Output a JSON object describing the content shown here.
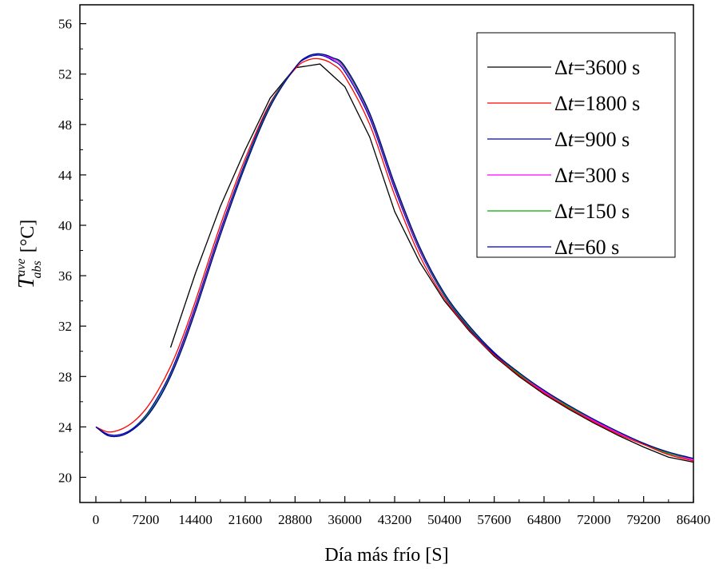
{
  "chart_data": {
    "type": "line",
    "xlabel": "Día más frío  [S]",
    "ylabel": {
      "symbol": "T",
      "superscript": "ave",
      "subscript": "abs",
      "unit": "[°C]"
    },
    "xlim": [
      0,
      86400
    ],
    "ylim": [
      18,
      57.5
    ],
    "xticks": [
      0,
      7200,
      14400,
      21600,
      28800,
      36000,
      43200,
      50400,
      57600,
      64800,
      72000,
      79200,
      86400
    ],
    "xtick_labels": [
      "0",
      "7200",
      "14400",
      "21600",
      "28800",
      "36000",
      "43200",
      "50400",
      "57600",
      "64800",
      "72000",
      "79200",
      "86400"
    ],
    "yticks": [
      20,
      24,
      28,
      32,
      36,
      40,
      44,
      48,
      52,
      56
    ],
    "ytick_labels": [
      "20",
      "24",
      "28",
      "32",
      "36",
      "40",
      "44",
      "48",
      "52",
      "56"
    ],
    "grid": false,
    "legend_position": "top-right",
    "series": [
      {
        "name": "Δt=3600 s",
        "legend": {
          "delta": "Δ",
          "var": "t",
          "rest": "=3600 s"
        },
        "color": "#000000",
        "x": [
          10800,
          14400,
          18000,
          21600,
          25200,
          28800,
          32400,
          36000,
          39600,
          43200,
          46800,
          50400,
          54000,
          57600,
          61200,
          64800,
          68400,
          72000,
          75600,
          79200,
          82800,
          86400
        ],
        "y": [
          30.3,
          36.2,
          41.5,
          46.0,
          50.1,
          52.5,
          52.8,
          51.0,
          47.0,
          41.1,
          37.1,
          34.0,
          31.6,
          29.6,
          28.0,
          26.6,
          25.4,
          24.3,
          23.3,
          22.4,
          21.6,
          21.2
        ]
      },
      {
        "name": "Δt=1800 s",
        "legend": {
          "delta": "Δ",
          "var": "t",
          "rest": "=1800 s"
        },
        "color": "#ff0000",
        "x": [
          0,
          1800,
          3600,
          5400,
          7200,
          9000,
          10800,
          12600,
          14400,
          18000,
          21600,
          25200,
          28800,
          30600,
          32400,
          34200,
          36000,
          39600,
          43200,
          46800,
          50400,
          54000,
          57600,
          61200,
          64800,
          68400,
          72000,
          75600,
          79200,
          82800,
          86400
        ],
        "y": [
          24.0,
          23.6,
          23.8,
          24.4,
          25.4,
          26.9,
          28.8,
          31.2,
          34.0,
          40.0,
          45.3,
          49.7,
          52.4,
          53.1,
          53.2,
          52.8,
          51.8,
          48.0,
          42.4,
          37.6,
          34.2,
          31.7,
          29.7,
          28.1,
          26.7,
          25.5,
          24.4,
          23.4,
          22.6,
          21.8,
          21.3
        ]
      },
      {
        "name": "Δt=900 s",
        "legend": {
          "delta": "Δ",
          "var": "t",
          "rest": "=900 s"
        },
        "color": "#0000cc",
        "x": [
          0,
          1800,
          3600,
          5400,
          7200,
          9000,
          10800,
          12600,
          14400,
          18000,
          21600,
          25200,
          28800,
          30600,
          32400,
          34200,
          36000,
          39600,
          43200,
          46800,
          50400,
          54000,
          57600,
          61200,
          64800,
          68400,
          72000,
          75600,
          79200,
          82800,
          86400
        ],
        "y": [
          24.0,
          23.4,
          23.4,
          23.9,
          24.9,
          26.4,
          28.3,
          30.8,
          33.6,
          39.6,
          45.0,
          49.6,
          52.5,
          53.3,
          53.5,
          53.1,
          52.2,
          48.5,
          42.9,
          38.0,
          34.4,
          31.8,
          29.8,
          28.2,
          26.8,
          25.6,
          24.5,
          23.5,
          22.7,
          21.9,
          21.4
        ]
      },
      {
        "name": "Δt=300 s",
        "legend": {
          "delta": "Δ",
          "var": "t",
          "rest": "=300 s"
        },
        "color": "#ff00ff",
        "x": [
          0,
          1800,
          3600,
          5400,
          7200,
          9000,
          10800,
          12600,
          14400,
          18000,
          21600,
          25200,
          28800,
          30600,
          32400,
          34200,
          36000,
          39600,
          43200,
          46800,
          50400,
          54000,
          57600,
          61200,
          64800,
          68400,
          72000,
          75600,
          79200,
          82800,
          86400
        ],
        "y": [
          24.0,
          23.3,
          23.3,
          23.8,
          24.8,
          26.2,
          28.1,
          30.6,
          33.4,
          39.4,
          44.8,
          49.5,
          52.5,
          53.4,
          53.6,
          53.2,
          52.4,
          48.7,
          43.1,
          38.1,
          34.5,
          31.9,
          29.9,
          28.2,
          26.8,
          25.6,
          24.5,
          23.5,
          22.7,
          21.9,
          21.4
        ]
      },
      {
        "name": "Δt=150 s",
        "legend": {
          "delta": "Δ",
          "var": "t",
          "rest": "=150 s"
        },
        "color": "#00aa00",
        "x": [
          0,
          1800,
          3600,
          5400,
          7200,
          9000,
          10800,
          12600,
          14400,
          18000,
          21600,
          25200,
          28800,
          30600,
          32400,
          34200,
          36000,
          39600,
          43200,
          46800,
          50400,
          54000,
          57600,
          61200,
          64800,
          68400,
          72000,
          75600,
          79200,
          82800,
          86400
        ],
        "y": [
          24.0,
          23.3,
          23.3,
          23.8,
          24.8,
          26.2,
          28.1,
          30.5,
          33.3,
          39.3,
          44.8,
          49.5,
          52.5,
          53.4,
          53.6,
          53.3,
          52.5,
          48.8,
          43.2,
          38.2,
          34.5,
          31.9,
          29.9,
          28.2,
          26.9,
          25.6,
          24.6,
          23.6,
          22.7,
          21.9,
          21.5
        ]
      },
      {
        "name": "Δt=60 s",
        "legend": {
          "delta": "Δ",
          "var": "t",
          "rest": "=60 s"
        },
        "color": "#000099",
        "x": [
          0,
          1800,
          3600,
          5400,
          7200,
          9000,
          10800,
          12600,
          14400,
          18000,
          21600,
          25200,
          28800,
          30600,
          32400,
          34200,
          36000,
          39600,
          43200,
          46800,
          50400,
          54000,
          57600,
          61200,
          64800,
          68400,
          72000,
          75600,
          79200,
          82800,
          86400
        ],
        "y": [
          24.0,
          23.3,
          23.3,
          23.8,
          24.7,
          26.1,
          28.0,
          30.4,
          33.2,
          39.2,
          44.7,
          49.4,
          52.5,
          53.4,
          53.6,
          53.3,
          52.6,
          48.9,
          43.3,
          38.3,
          34.6,
          32.0,
          29.9,
          28.3,
          26.9,
          25.7,
          24.6,
          23.6,
          22.7,
          22.0,
          21.5
        ]
      }
    ]
  }
}
